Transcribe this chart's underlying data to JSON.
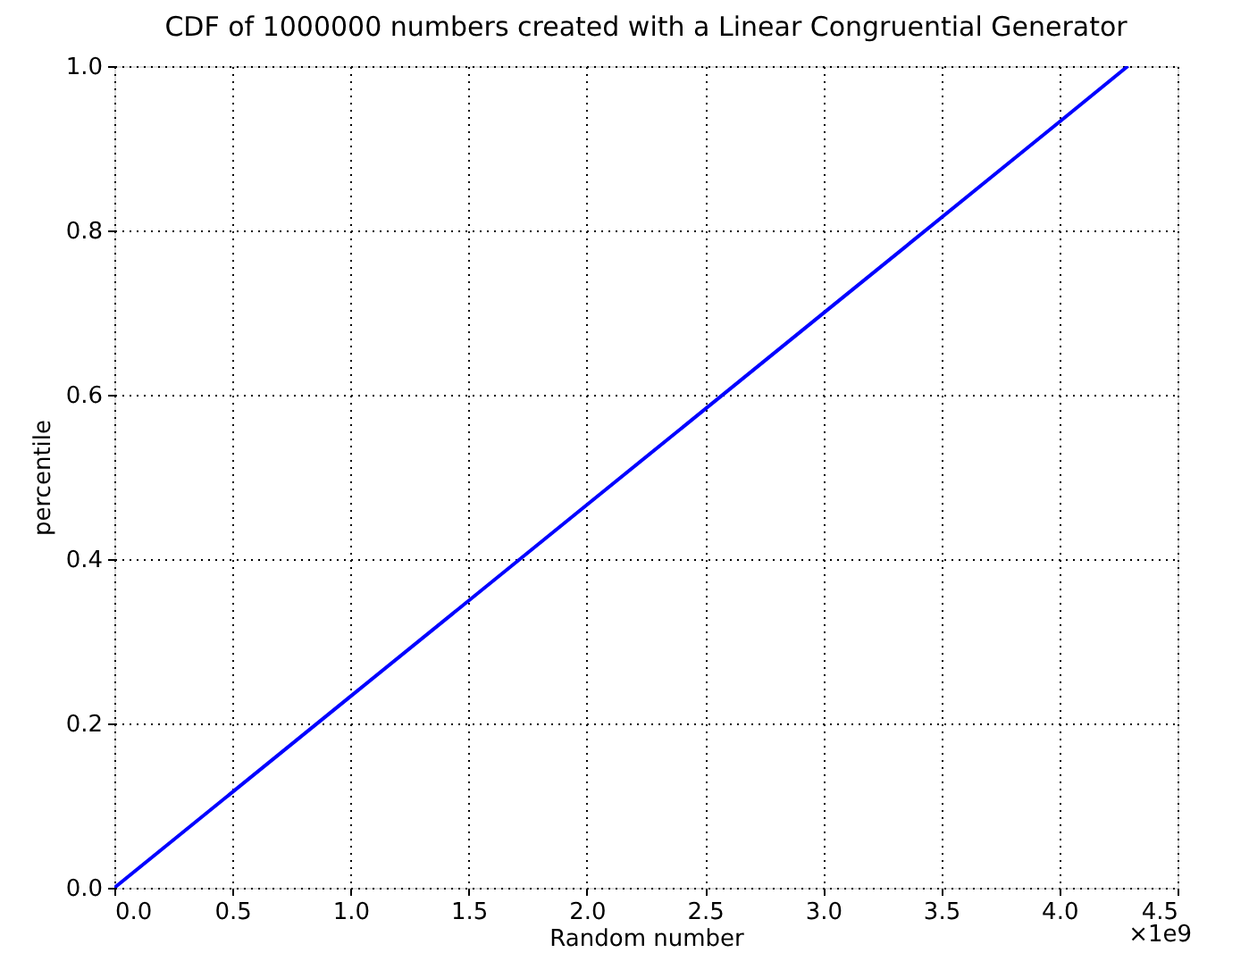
{
  "chart_data": {
    "type": "line",
    "title": "CDF of 1000000 numbers created with a Linear Congruential Generator",
    "xlabel": "Random number",
    "ylabel": "percentile",
    "x": [
      0,
      1.0,
      2.0,
      3.0,
      4.0,
      4.29
    ],
    "series": [
      {
        "color": "#0000ff",
        "values": [
          0,
          0.233,
          0.466,
          0.699,
          0.932,
          1.0
        ]
      }
    ],
    "xlim": [
      0,
      4.5
    ],
    "xticks": [
      {
        "value": 0,
        "label": "0.0"
      },
      {
        "value": 0.5,
        "label": "0.5"
      },
      {
        "value": 1,
        "label": "1.0"
      },
      {
        "value": 1.5,
        "label": "1.5"
      },
      {
        "value": 2,
        "label": "2.0"
      },
      {
        "value": 2.5,
        "label": "2.5"
      },
      {
        "value": 3,
        "label": "3.0"
      },
      {
        "value": 3.5,
        "label": "3.5"
      },
      {
        "value": 4,
        "label": "4.0"
      },
      {
        "value": 4.5,
        "label": "4.5"
      }
    ],
    "ylim": [
      0,
      1
    ],
    "yticks": [
      {
        "value": 0,
        "label": "0.0"
      },
      {
        "value": 0.2,
        "label": "0.2"
      },
      {
        "value": 0.4,
        "label": "0.4"
      },
      {
        "value": 0.6,
        "label": "0.6"
      },
      {
        "value": 0.8,
        "label": "0.8"
      },
      {
        "value": 1,
        "label": "1.0"
      }
    ],
    "annotations": [
      "×1e9"
    ],
    "grid": true,
    "marker": "none",
    "line_style": "solid"
  }
}
